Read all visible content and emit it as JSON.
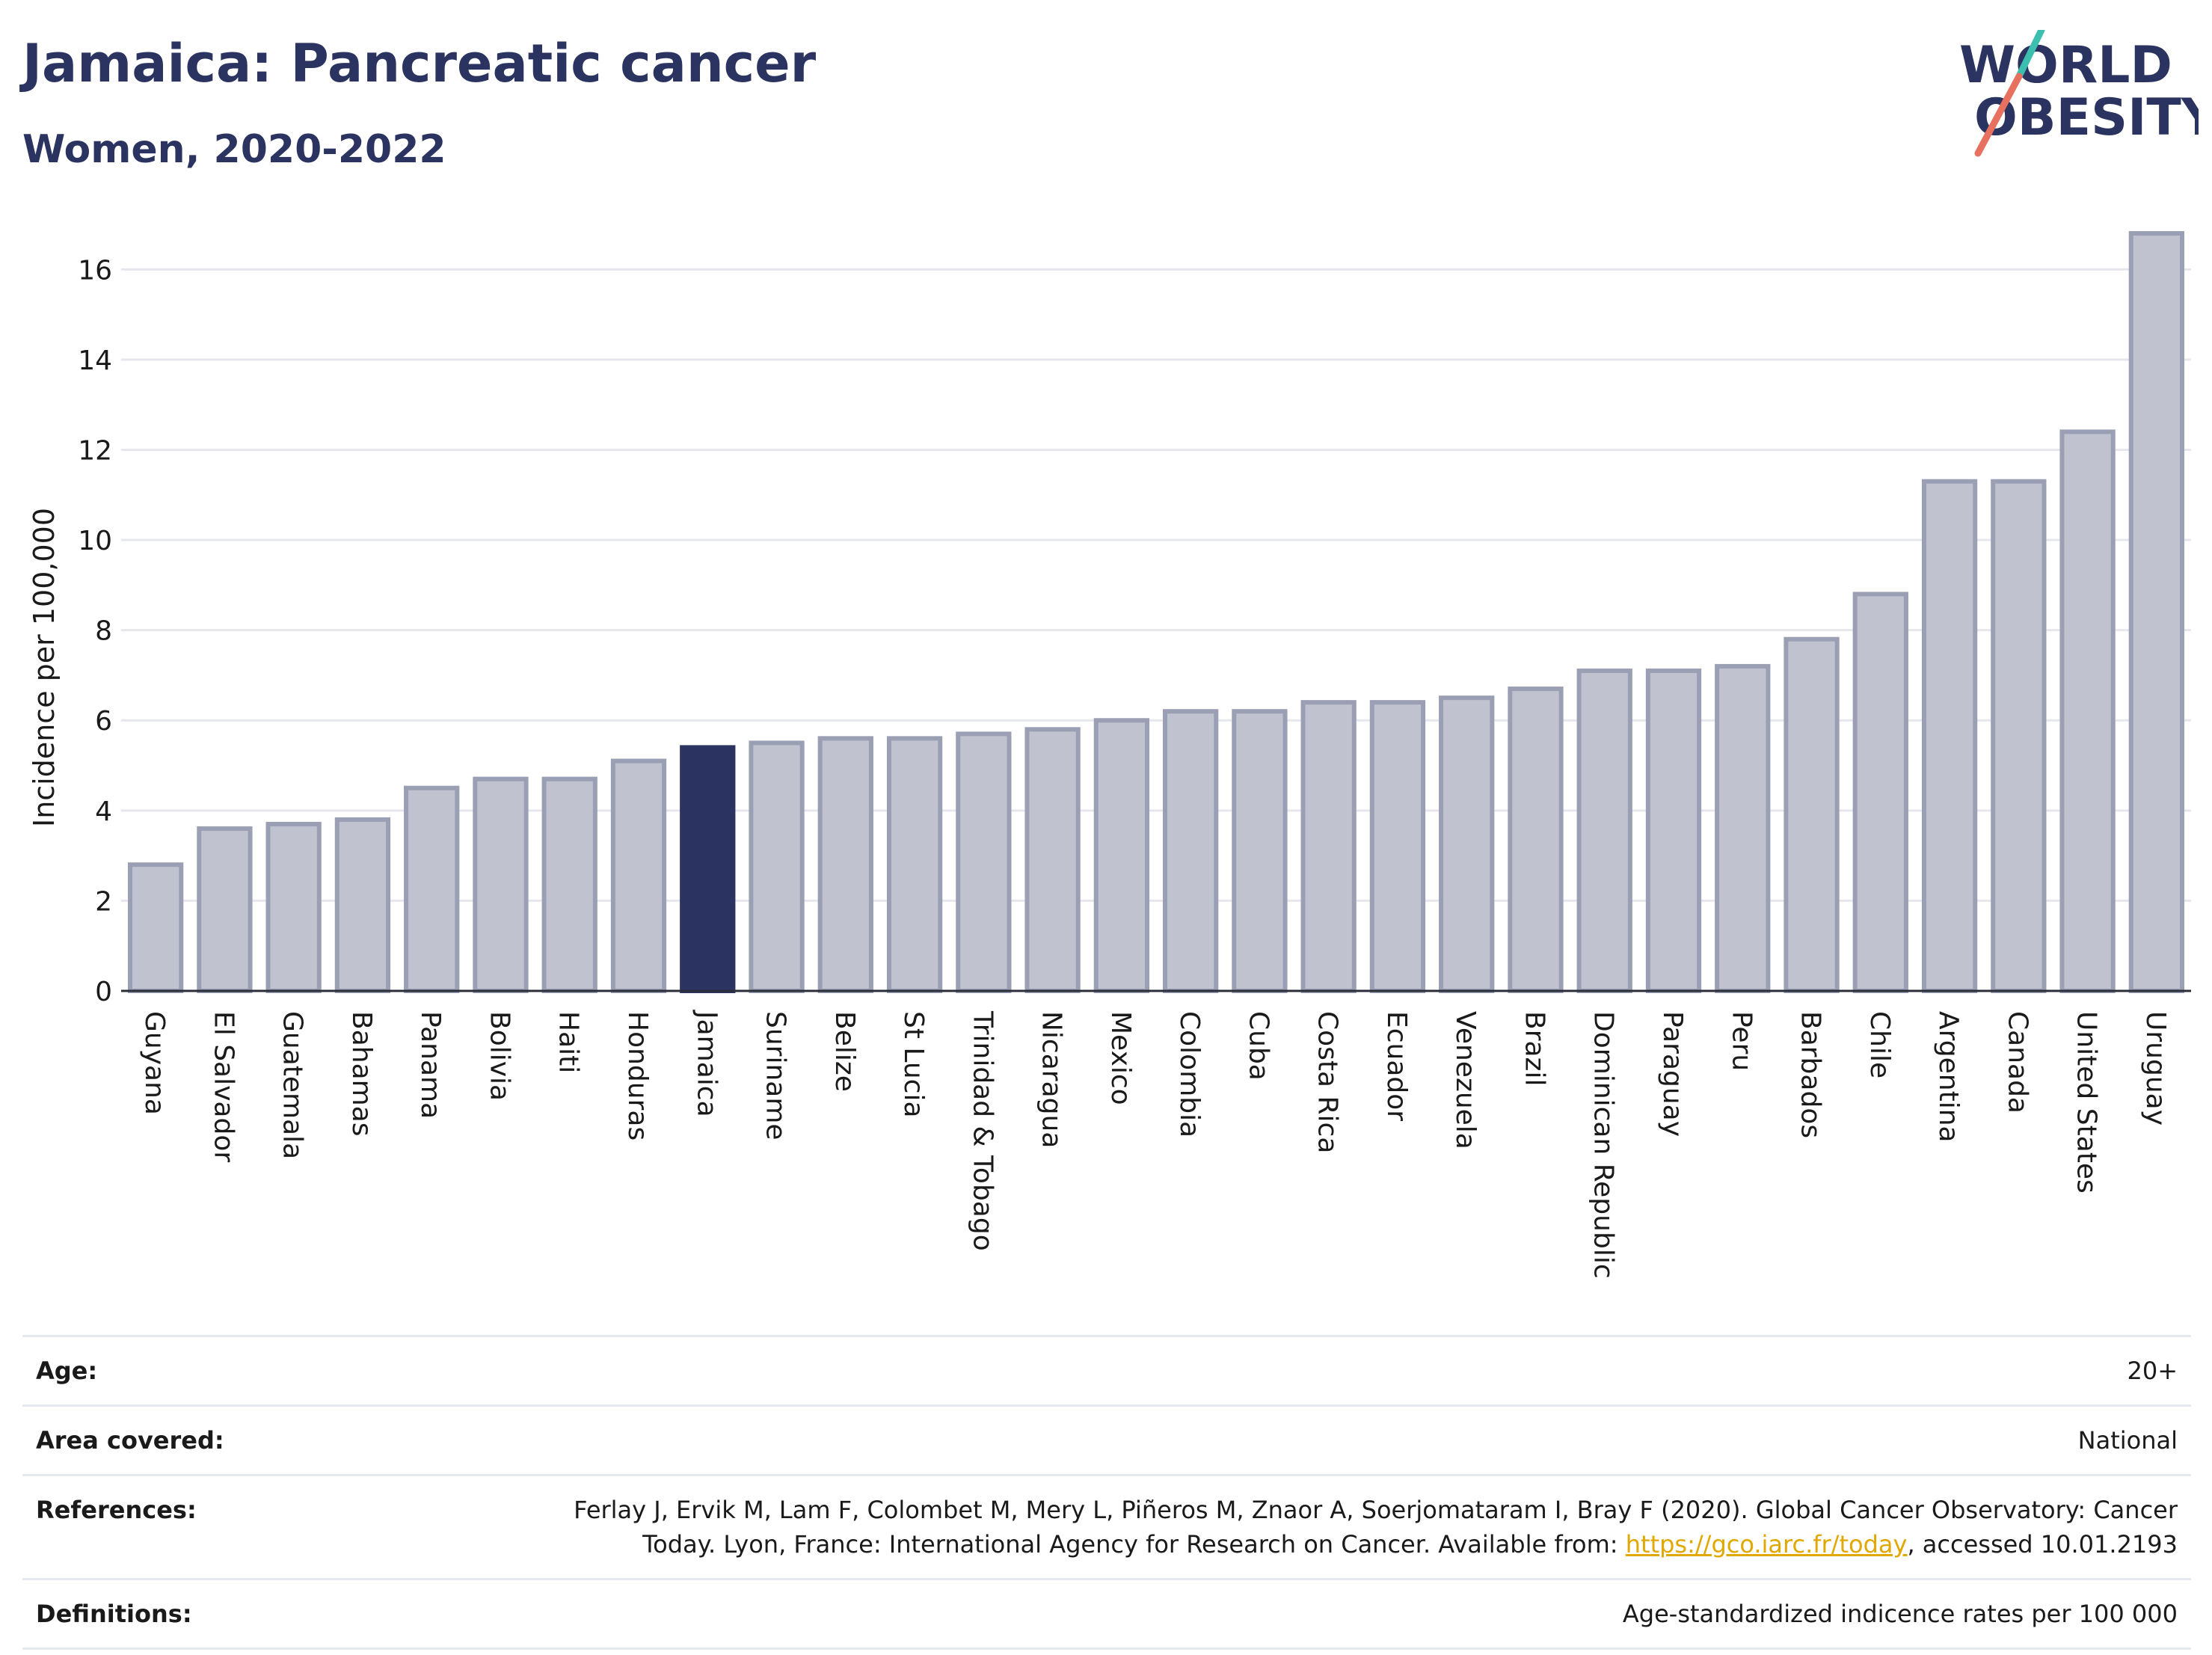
{
  "header": {
    "title": "Jamaica: Pancreatic cancer",
    "subtitle": "Women, 2020-2022"
  },
  "logo": {
    "line1": "WORLD",
    "line2": "OBESITY",
    "name": "world-obesity-logo"
  },
  "colors": {
    "highlight": "#2b3461",
    "bar_fill": "#c0c3cf",
    "bar_stroke": "#9a9fb4",
    "text": "#2b3461",
    "link": "#e0a800"
  },
  "chart_data": {
    "type": "bar",
    "title": "Jamaica: Pancreatic cancer",
    "subtitle": "Women, 2020-2022",
    "ylabel": "Incidence per 100,000",
    "xlabel": "",
    "ylim": [
      0,
      17
    ],
    "yticks": [
      0,
      2,
      4,
      6,
      8,
      10,
      12,
      14,
      16
    ],
    "grid": true,
    "highlight": "Jamaica",
    "categories": [
      "Guyana",
      "El Salvador",
      "Guatemala",
      "Bahamas",
      "Panama",
      "Bolivia",
      "Haiti",
      "Honduras",
      "Jamaica",
      "Suriname",
      "Belize",
      "St Lucia",
      "Trinidad & Tobago",
      "Nicaragua",
      "Mexico",
      "Colombia",
      "Cuba",
      "Costa Rica",
      "Ecuador",
      "Venezuela",
      "Brazil",
      "Dominican Republic",
      "Paraguay",
      "Peru",
      "Barbados",
      "Chile",
      "Argentina",
      "Canada",
      "United States",
      "Uruguay"
    ],
    "values": [
      2.8,
      3.6,
      3.7,
      3.8,
      4.5,
      4.7,
      4.7,
      5.1,
      5.4,
      5.5,
      5.6,
      5.6,
      5.7,
      5.8,
      6.0,
      6.2,
      6.2,
      6.4,
      6.4,
      6.5,
      6.7,
      7.1,
      7.1,
      7.2,
      7.8,
      8.8,
      11.3,
      11.3,
      12.4,
      16.8
    ]
  },
  "meta": {
    "age_label": "Age:",
    "age_value": "20+",
    "area_label": "Area covered:",
    "area_value": "National",
    "references_label": "References:",
    "references_text": "Ferlay J, Ervik M, Lam F, Colombet M, Mery L, Piñeros M, Znaor A, Soerjomataram I, Bray F (2020). Global Cancer Observatory: Cancer Today. Lyon, France: International Agency for Research on Cancer. Available from: ",
    "references_link": "https://gco.iarc.fr/today",
    "references_suffix": ", accessed 10.01.2193",
    "definitions_label": "Definitions:",
    "definitions_value": "Age-standardized indicence rates per 100 000"
  }
}
